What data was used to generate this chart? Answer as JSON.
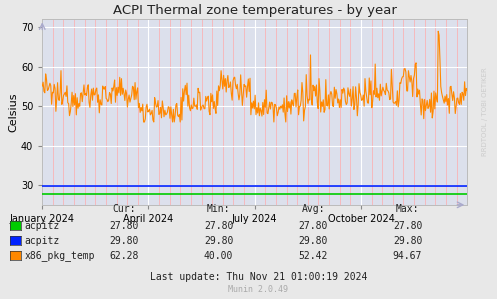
{
  "title": "ACPI Thermal zone temperatures - by year",
  "ylabel": "Celsius",
  "ylim": [
    25,
    72
  ],
  "yticks": [
    30,
    40,
    50,
    60,
    70
  ],
  "bg_color": "#dfe0e8",
  "plot_bg_color": "#dce0ec",
  "outer_bg_color": "#e8e8e8",
  "grid_color_major": "#ffffff",
  "grid_color_minor": "#ffaaaa",
  "legend_entries": [
    {
      "label": "acpitz",
      "color": "#00cc00",
      "cur": "27.80",
      "min": "27.80",
      "avg": "27.80",
      "max": "27.80"
    },
    {
      "label": "acpitz",
      "color": "#0022ff",
      "cur": "29.80",
      "min": "29.80",
      "avg": "29.80",
      "max": "29.80"
    },
    {
      "label": "x86_pkg_temp",
      "color": "#ff8800",
      "cur": "62.28",
      "min": "40.00",
      "avg": "52.42",
      "max": "94.67"
    }
  ],
  "last_update": "Last update: Thu Nov 21 01:00:19 2024",
  "munin_version": "Munin 2.0.49",
  "xtick_labels": [
    "January 2024",
    "April 2024",
    "July 2024",
    "October 2024"
  ],
  "right_label": "RRDTOOL / TOBI OETIKER",
  "acpitz_green_value": 27.8,
  "acpitz_blue_value": 29.8
}
